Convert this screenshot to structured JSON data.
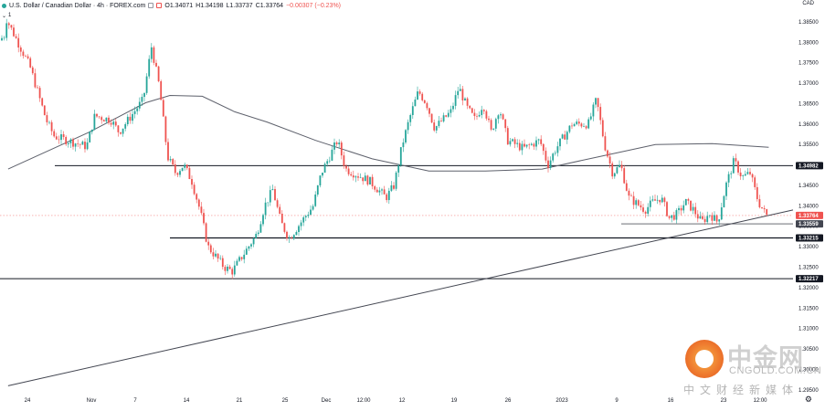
{
  "header": {
    "title": "U.S. Dollar / Canadian Dollar · 4h · FOREX.com",
    "open": "O1.34071",
    "high": "H1.34198",
    "low": "L1.33737",
    "close": "C1.33764",
    "change": "−0.00307 (−0.23%)",
    "indicator_count": "1",
    "currency": "CAD"
  },
  "watermark": {
    "cn": "中金网",
    "en": "CNGOLD.COM.CN",
    "sub": "中文财经新媒体"
  },
  "colors": {
    "up": "#26a69a",
    "down": "#ef5350",
    "ma": "#5d606b",
    "level": "#131722",
    "price_tag": "#ef5350"
  },
  "chart_data": {
    "type": "candlestick",
    "symbol": "USDCAD",
    "timeframe": "4h",
    "ylim": [
      1.29474,
      1.39033
    ],
    "y_ticks": [
      "1.38500",
      "1.38000",
      "1.37500",
      "1.37000",
      "1.36500",
      "1.36000",
      "1.35500",
      "1.35000",
      "1.34500",
      "1.34000",
      "1.33500",
      "1.33000",
      "1.32500",
      "1.32000",
      "1.31500",
      "1.31000",
      "1.30500",
      "1.30000",
      "1.29500"
    ],
    "x_ticks": [
      "24",
      "Nov",
      "7",
      "14",
      "21",
      "25",
      "Dec",
      "12:00",
      "12",
      "19",
      "26",
      "2023",
      "9",
      "16",
      "23",
      "12:00"
    ],
    "horizontal_levels": [
      {
        "value": 1.34982,
        "label": "1.34982"
      },
      {
        "value": 1.33215,
        "label": "1.33215"
      },
      {
        "value": 1.32217,
        "label": "1.32217"
      },
      {
        "value": 1.33559,
        "label": "1.33559"
      }
    ],
    "last_price": {
      "value": 1.33764,
      "label": "1.33764"
    },
    "trendline": [
      {
        "x": "Oct 21",
        "y": 1.296
      },
      {
        "x": "Jan 26",
        "y": 1.339
      }
    ],
    "moving_average_path": [
      {
        "x": "Oct 21",
        "y": 1.349
      },
      {
        "x": "Oct 31",
        "y": 1.358
      },
      {
        "x": "Nov 7",
        "y": 1.3652
      },
      {
        "x": "Nov 10",
        "y": 1.367
      },
      {
        "x": "Nov 14",
        "y": 1.3668
      },
      {
        "x": "Nov 18",
        "y": 1.363
      },
      {
        "x": "Nov 22",
        "y": 1.3605
      },
      {
        "x": "Nov 28",
        "y": 1.356
      },
      {
        "x": "Dec 5",
        "y": 1.3515
      },
      {
        "x": "Dec 12",
        "y": 1.3485
      },
      {
        "x": "Dec 19",
        "y": 1.3485
      },
      {
        "x": "Dec 26",
        "y": 1.349
      },
      {
        "x": "Jan 2",
        "y": 1.352
      },
      {
        "x": "Jan 9",
        "y": 1.355
      },
      {
        "x": "Jan 16",
        "y": 1.3552
      },
      {
        "x": "Jan 23",
        "y": 1.3543
      }
    ],
    "price_path": [
      {
        "x": "Oct 20",
        "y": 1.38
      },
      {
        "x": "Oct 21",
        "y": 1.382
      },
      {
        "x": "Oct 21",
        "y": 1.386
      },
      {
        "x": "Oct 24",
        "y": 1.374
      },
      {
        "x": "Oct 26",
        "y": 1.361
      },
      {
        "x": "Oct 27",
        "y": 1.357
      },
      {
        "x": "Oct 31",
        "y": 1.3545
      },
      {
        "x": "Nov 1",
        "y": 1.362
      },
      {
        "x": "Nov 3",
        "y": 1.361
      },
      {
        "x": "Nov 4",
        "y": 1.358
      },
      {
        "x": "Nov 7",
        "y": 1.366
      },
      {
        "x": "Nov 8",
        "y": 1.379
      },
      {
        "x": "Nov 9",
        "y": 1.369
      },
      {
        "x": "Nov 10",
        "y": 1.352
      },
      {
        "x": "Nov 11",
        "y": 1.348
      },
      {
        "x": "Nov 12",
        "y": 1.35
      },
      {
        "x": "Nov 13",
        "y": 1.346
      },
      {
        "x": "Nov 14",
        "y": 1.339
      },
      {
        "x": "Nov 15",
        "y": 1.33
      },
      {
        "x": "Nov 17",
        "y": 1.325
      },
      {
        "x": "Nov 18",
        "y": 1.324
      },
      {
        "x": "Nov 21",
        "y": 1.333
      },
      {
        "x": "Nov 22",
        "y": 1.34
      },
      {
        "x": "Nov 23",
        "y": 1.344
      },
      {
        "x": "Nov 24",
        "y": 1.336
      },
      {
        "x": "Nov 25",
        "y": 1.332
      },
      {
        "x": "Nov 28",
        "y": 1.34
      },
      {
        "x": "Nov 29",
        "y": 1.348
      },
      {
        "x": "Dec 1",
        "y": 1.356
      },
      {
        "x": "Dec 2",
        "y": 1.349
      },
      {
        "x": "Dec 5",
        "y": 1.346
      },
      {
        "x": "Dec 6",
        "y": 1.344
      },
      {
        "x": "Dec 7",
        "y": 1.342
      },
      {
        "x": "Dec 8",
        "y": 1.345
      },
      {
        "x": "Dec 9",
        "y": 1.355
      },
      {
        "x": "Dec 10",
        "y": 1.362
      },
      {
        "x": "Dec 11",
        "y": 1.368
      },
      {
        "x": "Dec 12",
        "y": 1.365
      },
      {
        "x": "Dec 13",
        "y": 1.359
      },
      {
        "x": "Dec 15",
        "y": 1.363
      },
      {
        "x": "Dec 16",
        "y": 1.369
      },
      {
        "x": "Dec 17",
        "y": 1.364
      },
      {
        "x": "Dec 18",
        "y": 1.361
      },
      {
        "x": "Dec 19",
        "y": 1.365
      },
      {
        "x": "Dec 20",
        "y": 1.358
      },
      {
        "x": "Dec 21",
        "y": 1.364
      },
      {
        "x": "Dec 22",
        "y": 1.356
      },
      {
        "x": "Dec 24",
        "y": 1.354
      },
      {
        "x": "Dec 26",
        "y": 1.356
      },
      {
        "x": "Dec 27",
        "y": 1.35
      },
      {
        "x": "Dec 28",
        "y": 1.354
      },
      {
        "x": "Dec 29",
        "y": 1.357
      },
      {
        "x": "Dec 30",
        "y": 1.36
      },
      {
        "x": "Jan 1",
        "y": 1.36
      },
      {
        "x": "Jan 2",
        "y": 1.366
      },
      {
        "x": "Jan 3",
        "y": 1.355
      },
      {
        "x": "Jan 4",
        "y": 1.348
      },
      {
        "x": "Jan 5",
        "y": 1.35
      },
      {
        "x": "Jan 6",
        "y": 1.342
      },
      {
        "x": "Jan 8",
        "y": 1.339
      },
      {
        "x": "Jan 9",
        "y": 1.341
      },
      {
        "x": "Jan 10",
        "y": 1.342
      },
      {
        "x": "Jan 11",
        "y": 1.337
      },
      {
        "x": "Jan 12",
        "y": 1.338
      },
      {
        "x": "Jan 13",
        "y": 1.341
      },
      {
        "x": "Jan 14",
        "y": 1.339
      },
      {
        "x": "Jan 15",
        "y": 1.336
      },
      {
        "x": "Jan 16",
        "y": 1.338
      },
      {
        "x": "Jan 17",
        "y": 1.336
      },
      {
        "x": "Jan 18",
        "y": 1.345
      },
      {
        "x": "Jan 19",
        "y": 1.351
      },
      {
        "x": "Jan 20",
        "y": 1.347
      },
      {
        "x": "Jan 21",
        "y": 1.348
      },
      {
        "x": "Jan 22",
        "y": 1.341
      },
      {
        "x": "Jan 23",
        "y": 1.3376
      }
    ]
  }
}
